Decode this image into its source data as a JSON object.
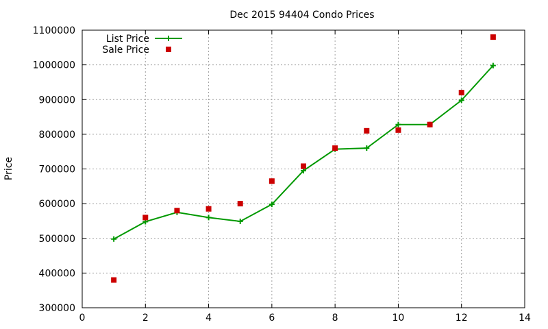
{
  "chart_data": {
    "type": "line",
    "title": "Dec 2015 94404 Condo Prices",
    "xlabel": "",
    "ylabel": "Price",
    "xlim": [
      0,
      14
    ],
    "ylim": [
      300000,
      1100000
    ],
    "xticks": [
      0,
      2,
      4,
      6,
      8,
      10,
      12,
      14
    ],
    "yticks": [
      300000,
      400000,
      500000,
      600000,
      700000,
      800000,
      900000,
      1000000,
      1100000
    ],
    "grid": true,
    "legend_position": "top-left",
    "series": [
      {
        "name": "List Price",
        "style": "line-with-plus-markers",
        "color": "#009900",
        "x": [
          1,
          2,
          3,
          4,
          5,
          6,
          7,
          8,
          9,
          10,
          11,
          12,
          13
        ],
        "y": [
          498000,
          548000,
          575000,
          560000,
          549000,
          598000,
          695000,
          757000,
          760000,
          828000,
          828000,
          898000,
          998000
        ]
      },
      {
        "name": "Sale Price",
        "style": "square-markers",
        "color": "#cc0000",
        "x": [
          1,
          2,
          3,
          4,
          5,
          6,
          7,
          8,
          9,
          10,
          11,
          12,
          13
        ],
        "y": [
          380000,
          560000,
          580000,
          585000,
          600000,
          665000,
          708000,
          760000,
          810000,
          812000,
          828000,
          920000,
          1080000
        ]
      }
    ]
  }
}
